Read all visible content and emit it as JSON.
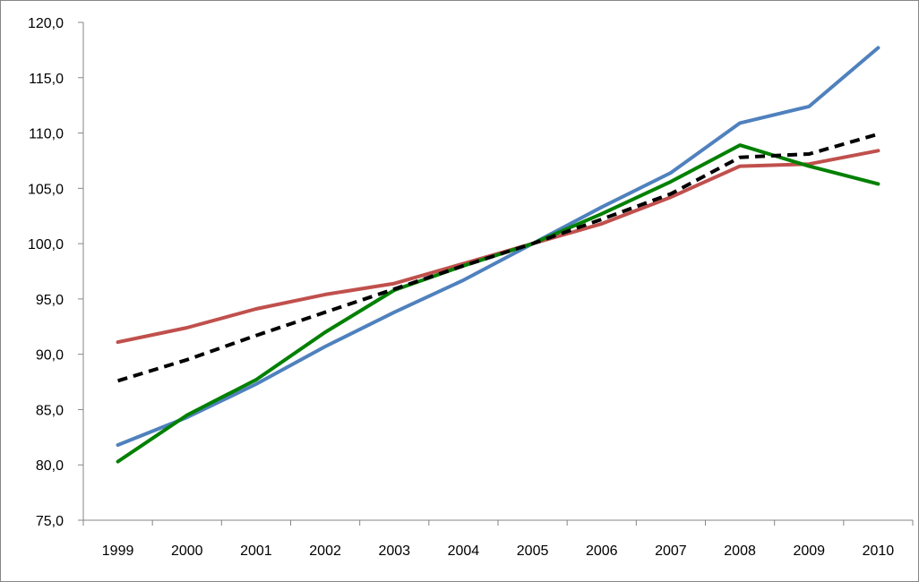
{
  "chart_data": {
    "type": "line",
    "title": "",
    "xlabel": "",
    "ylabel": "",
    "x": [
      "1999",
      "2000",
      "2001",
      "2002",
      "2003",
      "2004",
      "2005",
      "2006",
      "2007",
      "2008",
      "2009",
      "2010"
    ],
    "ylim": [
      75,
      120
    ],
    "yticks": [
      75,
      80,
      85,
      90,
      95,
      100,
      105,
      110,
      115,
      120
    ],
    "ytick_labels": [
      "75,0",
      "80,0",
      "85,0",
      "90,0",
      "95,0",
      "100,0",
      "105,0",
      "110,0",
      "115,0",
      "120,0"
    ],
    "grid": false,
    "legend": "none",
    "series": [
      {
        "color": "#4f81bd",
        "dash": "solid",
        "values": [
          81.8,
          84.3,
          87.3,
          90.7,
          93.8,
          96.7,
          100.0,
          103.3,
          106.4,
          110.9,
          112.4,
          117.7
        ]
      },
      {
        "color": "#c0504d",
        "dash": "solid",
        "values": [
          91.1,
          92.4,
          94.1,
          95.4,
          96.4,
          98.2,
          100.0,
          101.8,
          104.2,
          107.0,
          107.2,
          108.4
        ]
      },
      {
        "color": "#008000",
        "dash": "solid",
        "values": [
          80.3,
          84.5,
          87.7,
          92.0,
          95.8,
          98.0,
          100.0,
          102.7,
          105.6,
          108.9,
          107.0,
          105.4
        ]
      },
      {
        "color": "#000000",
        "dash": "dashed",
        "values": [
          87.6,
          89.5,
          91.7,
          93.8,
          95.9,
          98.0,
          100.0,
          102.2,
          104.5,
          107.8,
          108.1,
          109.9
        ]
      }
    ]
  }
}
